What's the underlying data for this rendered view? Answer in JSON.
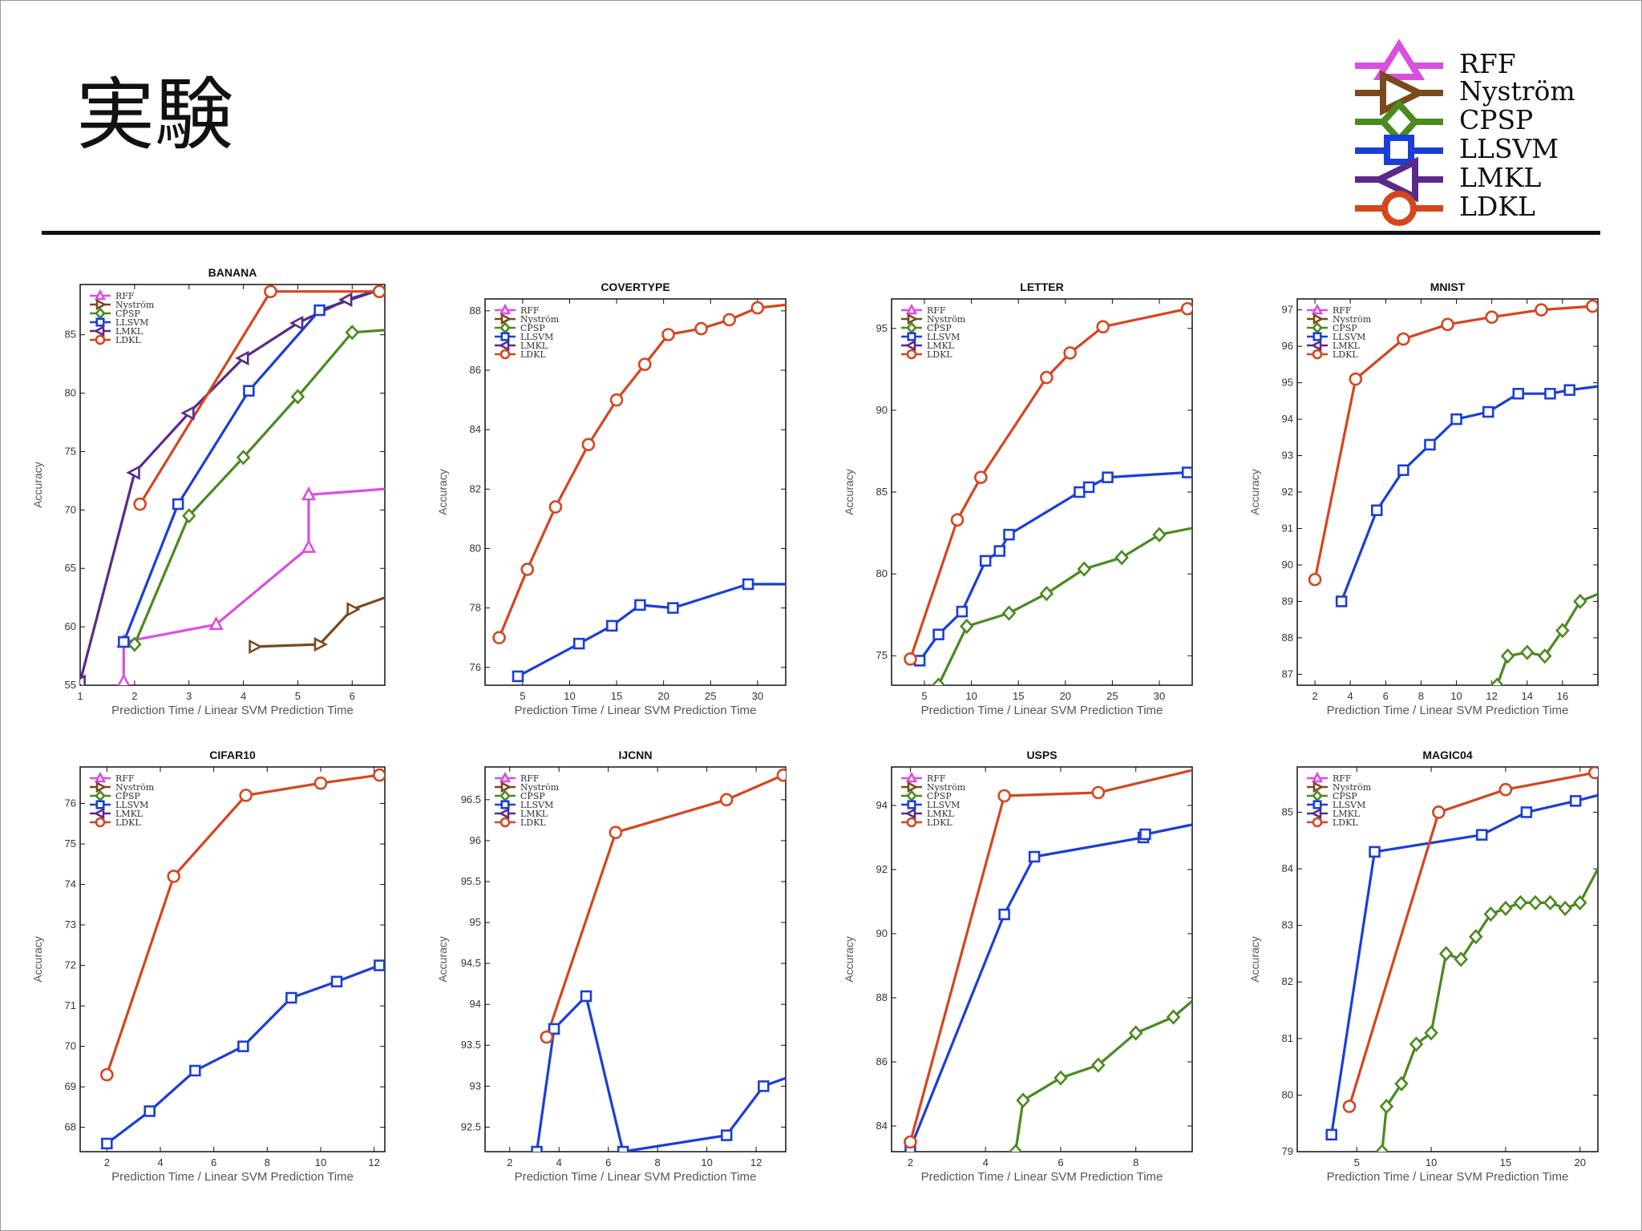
{
  "page": {
    "title": "実験"
  },
  "legend": {
    "items": [
      {
        "label": "RFF",
        "color": "#d94fe0",
        "marker": "triangle-up"
      },
      {
        "label": "Nyström",
        "color": "#7a4a1e",
        "marker": "triangle-right"
      },
      {
        "label": "CPSP",
        "color": "#4a8a1e",
        "marker": "diamond"
      },
      {
        "label": "LLSVM",
        "color": "#1a3fd6",
        "marker": "square"
      },
      {
        "label": "LMKL",
        "color": "#5a2a88",
        "marker": "triangle-left"
      },
      {
        "label": "LDKL",
        "color": "#d4461e",
        "marker": "circle"
      }
    ]
  },
  "chart_data": [
    {
      "type": "line",
      "title": "BANANA",
      "xlabel": "Prediction Time / Linear SVM Prediction Time",
      "ylabel": "Accuracy",
      "xlim": [
        1,
        6.6
      ],
      "ylim": [
        55,
        89.3
      ],
      "xticks": [
        1,
        2,
        3,
        4,
        5,
        6
      ],
      "yticks": [
        55,
        60,
        65,
        70,
        75,
        80,
        85
      ],
      "series": [
        {
          "name": "RFF",
          "x": [
            1.8,
            1.8,
            3.5,
            5.2,
            5.2,
            6.6
          ],
          "y": [
            55.3,
            58.7,
            60.2,
            66.8,
            71.3,
            71.8
          ]
        },
        {
          "name": "Nyström",
          "x": [
            4.2,
            5.4,
            6.0,
            6.6
          ],
          "y": [
            58.3,
            58.5,
            61.5,
            62.5
          ]
        },
        {
          "name": "CPSP",
          "x": [
            2.0,
            3.0,
            4.0,
            5.0,
            6.0,
            6.6
          ],
          "y": [
            58.5,
            69.5,
            74.5,
            79.7,
            85.2,
            85.4
          ]
        },
        {
          "name": "LLSVM",
          "x": [
            1.8,
            2.8,
            4.1,
            5.4,
            6.6
          ],
          "y": [
            58.7,
            70.5,
            80.2,
            87.1,
            89.0
          ]
        },
        {
          "name": "LMKL",
          "x": [
            1.0,
            2.0,
            3.0,
            4.0,
            5.0,
            5.9,
            6.6
          ],
          "y": [
            55.3,
            73.2,
            78.3,
            83.0,
            86.0,
            88.0,
            89.0
          ]
        },
        {
          "name": "LDKL",
          "x": [
            2.1,
            4.5,
            6.5
          ],
          "y": [
            70.5,
            88.7,
            88.7
          ]
        }
      ]
    },
    {
      "type": "line",
      "title": "COVERTYPE",
      "xlabel": "Prediction Time / Linear SVM Prediction Time",
      "ylabel": "Accuracy",
      "xlim": [
        1,
        33
      ],
      "ylim": [
        75.4,
        88.4
      ],
      "xticks": [
        5,
        10,
        15,
        20,
        25,
        30
      ],
      "yticks": [
        76,
        78,
        80,
        82,
        84,
        86,
        88
      ],
      "series": [
        {
          "name": "LLSVM",
          "x": [
            4.5,
            11,
            14.5,
            17.5,
            21,
            29,
            33
          ],
          "y": [
            75.7,
            76.8,
            77.4,
            78.1,
            78.0,
            78.8,
            78.8
          ]
        },
        {
          "name": "LDKL",
          "x": [
            2.5,
            5.5,
            8.5,
            12,
            15,
            18,
            20.5,
            24,
            27,
            30,
            33
          ],
          "y": [
            77.0,
            79.3,
            81.4,
            83.5,
            85.0,
            86.2,
            87.2,
            87.4,
            87.7,
            88.1,
            88.2
          ]
        }
      ]
    },
    {
      "type": "line",
      "title": "LETTER",
      "xlabel": "Prediction Time / Linear SVM Prediction Time",
      "ylabel": "Accuracy",
      "xlim": [
        1.5,
        33.5
      ],
      "ylim": [
        73.2,
        96.8
      ],
      "xticks": [
        5,
        10,
        15,
        20,
        25,
        30
      ],
      "yticks": [
        75,
        80,
        85,
        90,
        95
      ],
      "series": [
        {
          "name": "CPSP",
          "x": [
            6.5,
            9.5,
            14,
            18,
            22,
            26,
            30,
            33.5
          ],
          "y": [
            73.2,
            76.8,
            77.6,
            78.8,
            80.3,
            81.0,
            82.4,
            82.8
          ]
        },
        {
          "name": "LLSVM",
          "x": [
            4.5,
            6.5,
            9,
            11.5,
            13,
            14,
            21.5,
            22.5,
            24.5,
            33
          ],
          "y": [
            74.7,
            76.3,
            77.7,
            80.8,
            81.4,
            82.4,
            85.0,
            85.3,
            85.9,
            86.2
          ]
        },
        {
          "name": "LDKL",
          "x": [
            3.5,
            8.5,
            11,
            18,
            20.5,
            24,
            33
          ],
          "y": [
            74.8,
            83.3,
            85.9,
            92.0,
            93.5,
            95.1,
            96.2
          ]
        }
      ]
    },
    {
      "type": "line",
      "title": "MNIST",
      "xlabel": "Prediction Time / Linear SVM Prediction Time",
      "ylabel": "Accuracy",
      "xlim": [
        1,
        18
      ],
      "ylim": [
        86.7,
        97.3
      ],
      "xticks": [
        2,
        4,
        6,
        8,
        10,
        12,
        14,
        16
      ],
      "yticks": [
        87,
        88,
        89,
        90,
        91,
        92,
        93,
        94,
        95,
        96,
        97
      ],
      "series": [
        {
          "name": "CPSP",
          "x": [
            12.3,
            12.9,
            14,
            15,
            16,
            17,
            18
          ],
          "y": [
            86.7,
            87.5,
            87.6,
            87.5,
            88.2,
            89.0,
            89.2
          ]
        },
        {
          "name": "LLSVM",
          "x": [
            3.5,
            5.5,
            7,
            8.5,
            10,
            11.8,
            13.5,
            15.3,
            16.4,
            18
          ],
          "y": [
            89.0,
            91.5,
            92.6,
            93.3,
            94.0,
            94.2,
            94.7,
            94.7,
            94.8,
            94.9
          ]
        },
        {
          "name": "LDKL",
          "x": [
            2,
            4.3,
            7,
            9.5,
            12,
            14.8,
            17.7
          ],
          "y": [
            89.6,
            95.1,
            96.2,
            96.6,
            96.8,
            97.0,
            97.1
          ]
        }
      ]
    },
    {
      "type": "line",
      "title": "CIFAR10",
      "xlabel": "Prediction Time / Linear SVM Prediction Time",
      "ylabel": "Accuracy",
      "xlim": [
        1,
        12.4
      ],
      "ylim": [
        67.4,
        76.9
      ],
      "xticks": [
        2,
        4,
        6,
        8,
        10,
        12
      ],
      "yticks": [
        68,
        69,
        70,
        71,
        72,
        73,
        74,
        75,
        76
      ],
      "series": [
        {
          "name": "LLSVM",
          "x": [
            2,
            3.6,
            5.3,
            7.1,
            8.9,
            10.6,
            12.2
          ],
          "y": [
            67.6,
            68.4,
            69.4,
            70.0,
            71.2,
            71.6,
            72.0
          ]
        },
        {
          "name": "LDKL",
          "x": [
            2,
            4.5,
            7.2,
            10,
            12.2
          ],
          "y": [
            69.3,
            74.2,
            76.2,
            76.5,
            76.7
          ]
        }
      ]
    },
    {
      "type": "line",
      "title": "IJCNN",
      "xlabel": "Prediction Time / Linear SVM Prediction Time",
      "ylabel": "Accuracy",
      "xlim": [
        1,
        13.2
      ],
      "ylim": [
        92.2,
        96.9
      ],
      "xticks": [
        2,
        4,
        6,
        8,
        10,
        12
      ],
      "yticks": [
        92.5,
        93,
        93.5,
        94,
        94.5,
        95,
        95.5,
        96,
        96.5
      ],
      "series": [
        {
          "name": "LLSVM",
          "x": [
            3.1,
            3.8,
            5.1,
            6.6,
            10.8,
            12.3,
            13.2
          ],
          "y": [
            92.2,
            93.7,
            94.1,
            92.2,
            92.4,
            93.0,
            93.1
          ]
        },
        {
          "name": "LDKL",
          "x": [
            3.5,
            6.3,
            10.8,
            13.1
          ],
          "y": [
            93.6,
            96.1,
            96.5,
            96.8
          ]
        }
      ]
    },
    {
      "type": "line",
      "title": "USPS",
      "xlabel": "Prediction Time / Linear SVM Prediction Time",
      "ylabel": "Accuracy",
      "xlim": [
        1.5,
        9.5
      ],
      "ylim": [
        83.2,
        95.2
      ],
      "xticks": [
        2,
        4,
        6,
        8
      ],
      "yticks": [
        84,
        86,
        88,
        90,
        92,
        94
      ],
      "series": [
        {
          "name": "CPSP",
          "x": [
            4.8,
            5,
            6,
            7,
            8,
            9,
            9.5
          ],
          "y": [
            83.2,
            84.8,
            85.5,
            85.9,
            86.9,
            87.4,
            87.9
          ]
        },
        {
          "name": "LLSVM",
          "x": [
            2,
            4.5,
            5.3,
            8.2,
            8.25,
            9.5
          ],
          "y": [
            83.3,
            90.6,
            92.4,
            93.0,
            93.1,
            93.4
          ]
        },
        {
          "name": "LDKL",
          "x": [
            2,
            4.5,
            7,
            9.5
          ],
          "y": [
            83.5,
            94.3,
            94.4,
            95.1
          ]
        }
      ]
    },
    {
      "type": "line",
      "title": "MAGIC04",
      "xlabel": "Prediction Time / Linear SVM Prediction Time",
      "ylabel": "Accuracy",
      "xlim": [
        1,
        21.2
      ],
      "ylim": [
        79,
        85.8
      ],
      "xticks": [
        5,
        10,
        15,
        20
      ],
      "yticks": [
        79,
        80,
        81,
        82,
        83,
        84,
        85
      ],
      "series": [
        {
          "name": "CPSP",
          "x": [
            6.7,
            7,
            8,
            9,
            10,
            11,
            12,
            13,
            14,
            15,
            16,
            17,
            18,
            19,
            20,
            21.2
          ],
          "y": [
            79.0,
            79.8,
            80.2,
            80.9,
            81.1,
            82.5,
            82.4,
            82.8,
            83.2,
            83.3,
            83.4,
            83.4,
            83.4,
            83.3,
            83.4,
            84.0
          ]
        },
        {
          "name": "LLSVM",
          "x": [
            3.3,
            6.2,
            13.4,
            16.4,
            19.7,
            21.2
          ],
          "y": [
            79.3,
            84.3,
            84.6,
            85.0,
            85.2,
            85.3
          ]
        },
        {
          "name": "LDKL",
          "x": [
            4.5,
            10.5,
            15,
            21
          ],
          "y": [
            79.8,
            85.0,
            85.4,
            85.7
          ]
        }
      ]
    }
  ]
}
